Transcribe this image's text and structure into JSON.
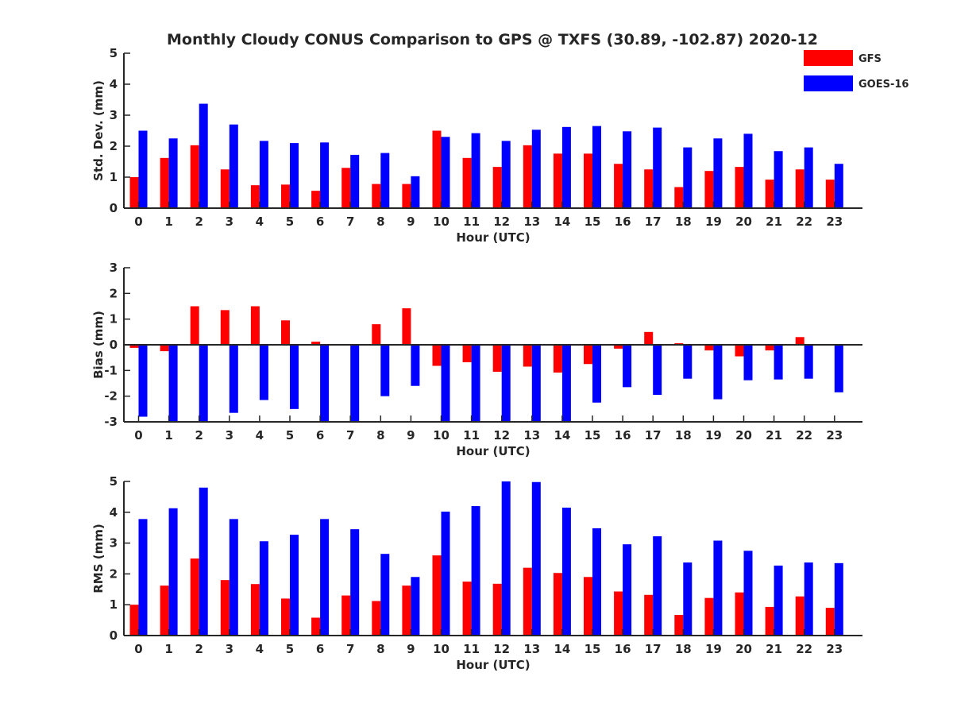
{
  "chart_data": {
    "type": "bar",
    "title": "Monthly Cloudy CONUS Comparison to GPS @ TXFS (30.89, -102.87) 2020-12",
    "legend": {
      "position": "top-right",
      "entries": [
        "GFS",
        "GOES-16"
      ]
    },
    "colors": {
      "GFS": "#ff0000",
      "GOES-16": "#0000ff"
    },
    "categories": [
      "0",
      "1",
      "2",
      "3",
      "4",
      "5",
      "6",
      "7",
      "8",
      "9",
      "10",
      "11",
      "12",
      "13",
      "14",
      "15",
      "16",
      "17",
      "18",
      "19",
      "20",
      "21",
      "22",
      "23"
    ],
    "panels": [
      {
        "id": "stddev",
        "xlabel": "Hour (UTC)",
        "ylabel": "Std. Dev. (mm)",
        "ylim": [
          0,
          5
        ],
        "yticks": [
          "0",
          "1",
          "2",
          "3",
          "4",
          "5"
        ],
        "grid": false,
        "series": [
          {
            "name": "GFS",
            "values": [
              1.0,
              1.62,
              2.03,
              1.25,
              0.74,
              0.76,
              0.56,
              1.3,
              0.78,
              0.78,
              2.5,
              1.62,
              1.33,
              2.03,
              1.76,
              1.76,
              1.43,
              1.25,
              0.68,
              1.2,
              1.33,
              0.92,
              1.25,
              0.92
            ]
          },
          {
            "name": "GOES-16",
            "values": [
              2.5,
              2.25,
              3.37,
              2.7,
              2.17,
              2.1,
              2.12,
              1.72,
              1.78,
              1.03,
              2.3,
              2.42,
              2.17,
              2.53,
              2.62,
              2.65,
              2.48,
              2.6,
              1.96,
              2.25,
              2.4,
              1.84,
              1.96,
              1.43
            ]
          }
        ]
      },
      {
        "id": "bias",
        "xlabel": "Hour (UTC)",
        "ylabel": "Bias (mm)",
        "ylim": [
          -3,
          3
        ],
        "yticks": [
          "-3",
          "-2",
          "-1",
          "0",
          "1",
          "2",
          "3"
        ],
        "grid": false,
        "series": [
          {
            "name": "GFS",
            "values": [
              -0.12,
              -0.25,
              1.5,
              1.35,
              1.5,
              0.95,
              0.12,
              0.0,
              0.8,
              1.42,
              -0.82,
              -0.68,
              -1.05,
              -0.85,
              -1.08,
              -0.75,
              -0.15,
              0.5,
              0.06,
              -0.22,
              -0.45,
              -0.22,
              0.3,
              0.0
            ]
          },
          {
            "name": "GOES-16",
            "values": [
              -2.8,
              -3.0,
              -3.0,
              -2.65,
              -2.15,
              -2.5,
              -3.0,
              -3.0,
              -2.0,
              -1.6,
              -3.0,
              -3.0,
              -3.0,
              -3.0,
              -3.0,
              -2.25,
              -1.65,
              -1.95,
              -1.32,
              -2.12,
              -1.38,
              -1.35,
              -1.32,
              -1.85
            ]
          }
        ]
      },
      {
        "id": "rms",
        "xlabel": "Hour (UTC)",
        "ylabel": "RMS (mm)",
        "ylim": [
          0,
          5
        ],
        "yticks": [
          "0",
          "1",
          "2",
          "3",
          "4",
          "5"
        ],
        "grid": false,
        "series": [
          {
            "name": "GFS",
            "values": [
              1.0,
              1.62,
              2.5,
              1.8,
              1.67,
              1.2,
              0.58,
              1.3,
              1.12,
              1.62,
              2.6,
              1.75,
              1.68,
              2.2,
              2.03,
              1.9,
              1.43,
              1.32,
              0.67,
              1.22,
              1.4,
              0.93,
              1.27,
              0.9
            ]
          },
          {
            "name": "GOES-16",
            "values": [
              3.78,
              4.13,
              4.8,
              3.78,
              3.06,
              3.27,
              3.78,
              3.45,
              2.65,
              1.9,
              4.02,
              4.2,
              5.0,
              4.98,
              4.15,
              3.48,
              2.96,
              3.22,
              2.37,
              3.08,
              2.75,
              2.27,
              2.37,
              2.35
            ]
          }
        ]
      }
    ]
  }
}
